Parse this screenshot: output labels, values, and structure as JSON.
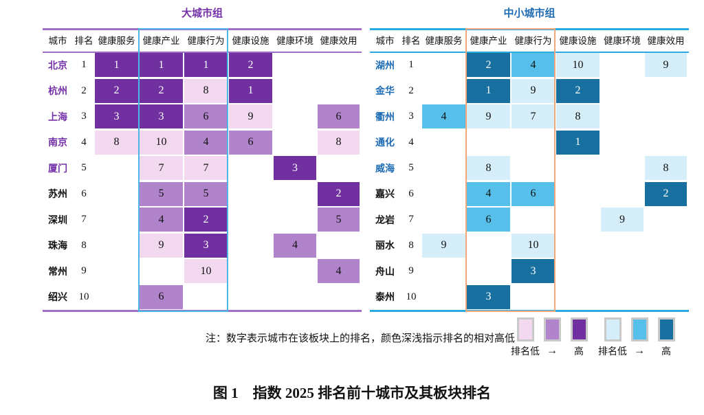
{
  "note": "注：数字表示城市在该板块上的排名，颜色深浅指示排名的相对高低",
  "caption": "图 1　指数 2025 排名前十城市及其板块排名",
  "legend": {
    "groups": [
      {
        "swatches": [
          "#f2d9f0",
          "#b083cb",
          "#7030a0"
        ],
        "labels": [
          "排名低",
          "→",
          "高"
        ]
      },
      {
        "swatches": [
          "#d6eef9",
          "#56c0ea",
          "#17709f"
        ],
        "labels": [
          "排名低",
          "→",
          "高"
        ]
      }
    ]
  },
  "chart_data": [
    {
      "type": "heatmap",
      "title": "大城市组",
      "accent": "#7430a8",
      "line_color": "#a06dc8",
      "box_color": "#4bb7e8",
      "tone_colors": {
        "dark": "#7030a0",
        "mid": "#b083cb",
        "light": "#f2d9f0"
      },
      "tone_rule": {
        "dark": "rank 1-3",
        "mid": "rank 4-6",
        "light": "rank 7-10"
      },
      "columns": [
        "城市",
        "排名",
        "健康服务",
        "健康产业",
        "健康行为",
        "健康设施",
        "健康环境",
        "健康效用"
      ],
      "highlighted_columns": [
        "健康产业",
        "健康行为"
      ],
      "highlighted_city_count": 5,
      "rows": [
        {
          "city": "北京",
          "rank": 1,
          "values": [
            1,
            1,
            1,
            2,
            null,
            null
          ]
        },
        {
          "city": "杭州",
          "rank": 2,
          "values": [
            2,
            2,
            8,
            1,
            null,
            null
          ]
        },
        {
          "city": "上海",
          "rank": 3,
          "values": [
            3,
            3,
            6,
            9,
            null,
            6
          ]
        },
        {
          "city": "南京",
          "rank": 4,
          "values": [
            8,
            10,
            4,
            6,
            null,
            8
          ]
        },
        {
          "city": "厦门",
          "rank": 5,
          "values": [
            null,
            7,
            7,
            null,
            3,
            null
          ]
        },
        {
          "city": "苏州",
          "rank": 6,
          "values": [
            null,
            5,
            5,
            null,
            null,
            2
          ]
        },
        {
          "city": "深圳",
          "rank": 7,
          "values": [
            null,
            4,
            2,
            null,
            null,
            5
          ]
        },
        {
          "city": "珠海",
          "rank": 8,
          "values": [
            null,
            9,
            3,
            null,
            4,
            null
          ]
        },
        {
          "city": "常州",
          "rank": 9,
          "values": [
            null,
            null,
            10,
            null,
            null,
            4
          ]
        },
        {
          "city": "绍兴",
          "rank": 10,
          "values": [
            null,
            6,
            null,
            null,
            null,
            null
          ]
        }
      ]
    },
    {
      "type": "heatmap",
      "title": "中小城市组",
      "accent": "#1f6cb5",
      "line_color": "#29aae1",
      "box_color": "#f2a878",
      "tone_colors": {
        "dark": "#17709f",
        "mid": "#56c0ea",
        "light": "#d6eef9"
      },
      "tone_rule": {
        "dark": "rank 1-3",
        "mid": "rank 4-6",
        "light": "rank 7-10"
      },
      "columns": [
        "城市",
        "排名",
        "健康服务",
        "健康产业",
        "健康行为",
        "健康设施",
        "健康环境",
        "健康效用"
      ],
      "highlighted_columns": [
        "健康产业",
        "健康行为"
      ],
      "highlighted_city_count": 5,
      "rows": [
        {
          "city": "湖州",
          "rank": 1,
          "values": [
            null,
            2,
            4,
            10,
            null,
            9
          ]
        },
        {
          "city": "金华",
          "rank": 2,
          "values": [
            null,
            1,
            9,
            2,
            null,
            null
          ]
        },
        {
          "city": "衢州",
          "rank": 3,
          "values": [
            4,
            9,
            7,
            8,
            null,
            null
          ]
        },
        {
          "city": "通化",
          "rank": 4,
          "values": [
            null,
            null,
            null,
            1,
            null,
            null
          ]
        },
        {
          "city": "威海",
          "rank": 5,
          "values": [
            null,
            8,
            null,
            null,
            null,
            8
          ]
        },
        {
          "city": "嘉兴",
          "rank": 6,
          "values": [
            null,
            4,
            6,
            null,
            null,
            2
          ]
        },
        {
          "city": "龙岩",
          "rank": 7,
          "values": [
            null,
            6,
            null,
            null,
            9,
            null
          ]
        },
        {
          "city": "丽水",
          "rank": 8,
          "values": [
            9,
            null,
            10,
            null,
            null,
            null
          ]
        },
        {
          "city": "舟山",
          "rank": 9,
          "values": [
            null,
            null,
            3,
            null,
            null,
            null
          ]
        },
        {
          "city": "泰州",
          "rank": 10,
          "values": [
            null,
            3,
            null,
            null,
            null,
            null
          ]
        }
      ]
    }
  ]
}
